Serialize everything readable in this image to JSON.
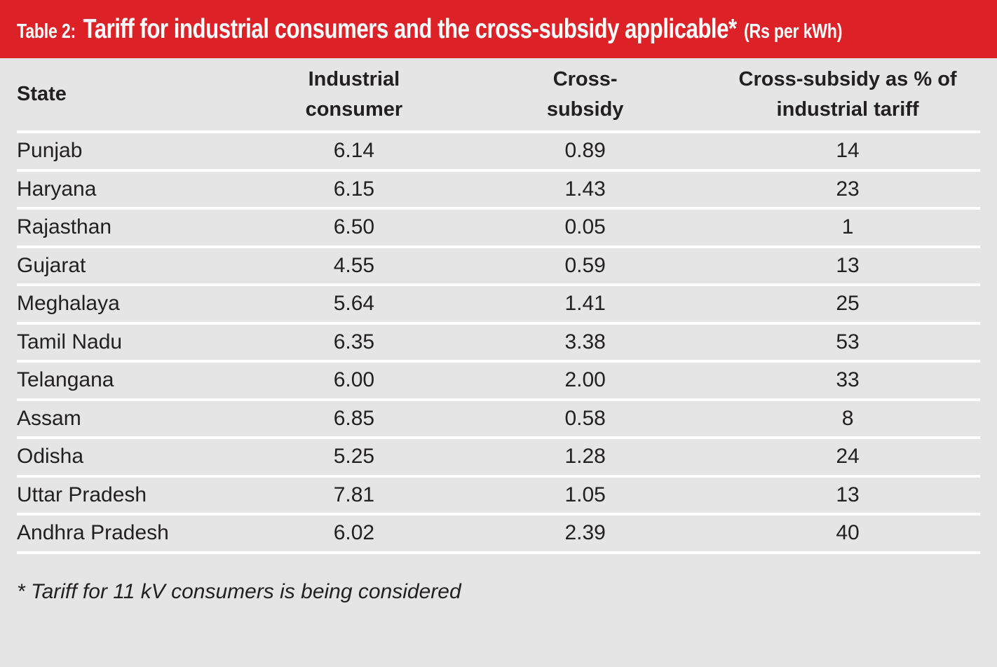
{
  "header": {
    "table_label": "Table 2:",
    "title": "Tariff for industrial consumers and the cross-subsidy applicable*",
    "unit": "(Rs per kWh)"
  },
  "table": {
    "columns": [
      "State",
      "Industrial\nconsumer",
      "Cross-\nsubsidy",
      "Cross-subsidy as % of\nindustrial tariff"
    ],
    "rows": [
      {
        "state": "Punjab",
        "industrial_consumer": "6.14",
        "cross_subsidy": "0.89",
        "cross_subsidy_pct": "14"
      },
      {
        "state": "Haryana",
        "industrial_consumer": "6.15",
        "cross_subsidy": "1.43",
        "cross_subsidy_pct": "23"
      },
      {
        "state": "Rajasthan",
        "industrial_consumer": "6.50",
        "cross_subsidy": "0.05",
        "cross_subsidy_pct": "1"
      },
      {
        "state": "Gujarat",
        "industrial_consumer": "4.55",
        "cross_subsidy": "0.59",
        "cross_subsidy_pct": "13"
      },
      {
        "state": "Meghalaya",
        "industrial_consumer": "5.64",
        "cross_subsidy": "1.41",
        "cross_subsidy_pct": "25"
      },
      {
        "state": "Tamil Nadu",
        "industrial_consumer": "6.35",
        "cross_subsidy": "3.38",
        "cross_subsidy_pct": "53"
      },
      {
        "state": "Telangana",
        "industrial_consumer": "6.00",
        "cross_subsidy": "2.00",
        "cross_subsidy_pct": "33"
      },
      {
        "state": "Assam",
        "industrial_consumer": "6.85",
        "cross_subsidy": "0.58",
        "cross_subsidy_pct": "8"
      },
      {
        "state": "Odisha",
        "industrial_consumer": "5.25",
        "cross_subsidy": "1.28",
        "cross_subsidy_pct": "24"
      },
      {
        "state": "Uttar Pradesh",
        "industrial_consumer": "7.81",
        "cross_subsidy": "1.05",
        "cross_subsidy_pct": "13"
      },
      {
        "state": "Andhra Pradesh",
        "industrial_consumer": "6.02",
        "cross_subsidy": "2.39",
        "cross_subsidy_pct": "40"
      }
    ]
  },
  "footnote": "* Tariff for 11 kV consumers is being considered",
  "colors": {
    "accent_red": "#dc2127",
    "background_gray": "#e6e5e6",
    "separator_white": "#ffffff",
    "text_dark": "#232021",
    "title_text": "#ffffff"
  }
}
